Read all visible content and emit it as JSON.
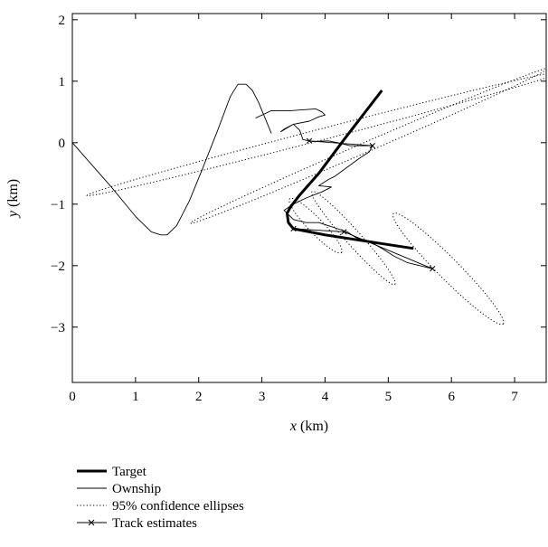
{
  "chart_data": {
    "type": "line",
    "title": "",
    "xlabel": {
      "var": "x",
      "unit": " (km)"
    },
    "ylabel": {
      "var": "y",
      "unit": " (km)"
    },
    "xlim": [
      0,
      7.5
    ],
    "ylim": [
      -3.9,
      2.1
    ],
    "xticks": [
      0,
      1,
      2,
      3,
      4,
      5,
      6,
      7
    ],
    "yticks": [
      2,
      1,
      0,
      -1,
      -2,
      -3
    ],
    "tick_labels_x": [
      "0",
      "1",
      "2",
      "3",
      "4",
      "5",
      "6",
      "7"
    ],
    "tick_labels_y": [
      "2",
      "1",
      "0",
      "−1",
      "−2",
      "−3"
    ],
    "grid": false,
    "legend_position": "below",
    "series": [
      {
        "name": "Target",
        "style": "thick",
        "points": [
          [
            4.9,
            0.85
          ],
          [
            4.3,
            0.05
          ],
          [
            3.9,
            -0.5
          ],
          [
            3.6,
            -0.85
          ],
          [
            3.45,
            -1.05
          ],
          [
            3.4,
            -1.15
          ],
          [
            3.42,
            -1.3
          ],
          [
            3.5,
            -1.4
          ],
          [
            4.0,
            -1.5
          ],
          [
            4.5,
            -1.58
          ],
          [
            5.4,
            -1.72
          ]
        ]
      },
      {
        "name": "Ownship",
        "style": "thin",
        "segments": [
          [
            [
              0.0,
              0.0
            ],
            [
              0.6,
              -0.7
            ],
            [
              1.0,
              -1.2
            ],
            [
              1.25,
              -1.45
            ],
            [
              1.4,
              -1.5
            ],
            [
              1.5,
              -1.5
            ],
            [
              1.65,
              -1.35
            ],
            [
              1.85,
              -0.95
            ],
            [
              2.05,
              -0.45
            ],
            [
              2.3,
              0.2
            ],
            [
              2.5,
              0.75
            ],
            [
              2.62,
              0.95
            ],
            [
              2.75,
              0.95
            ],
            [
              2.85,
              0.85
            ],
            [
              2.95,
              0.65
            ],
            [
              3.05,
              0.4
            ],
            [
              3.15,
              0.15
            ]
          ],
          [
            [
              2.9,
              0.4
            ],
            [
              3.15,
              0.52
            ],
            [
              3.45,
              0.52
            ],
            [
              3.85,
              0.55
            ],
            [
              3.95,
              0.5
            ],
            [
              4.0,
              0.45
            ],
            [
              3.9,
              0.42
            ],
            [
              3.75,
              0.35
            ],
            [
              3.5,
              0.3
            ],
            [
              3.35,
              0.22
            ],
            [
              3.3,
              0.18
            ],
            [
              3.5,
              0.3
            ],
            [
              3.6,
              0.2
            ],
            [
              3.65,
              0.05
            ],
            [
              3.8,
              0.02
            ],
            [
              4.05,
              0.03
            ],
            [
              4.2,
              0.0
            ],
            [
              4.4,
              -0.05
            ],
            [
              4.6,
              -0.05
            ],
            [
              4.75,
              -0.05
            ],
            [
              4.7,
              -0.15
            ],
            [
              4.55,
              -0.25
            ],
            [
              4.35,
              -0.4
            ],
            [
              4.15,
              -0.55
            ],
            [
              4.05,
              -0.6
            ],
            [
              3.9,
              -0.7
            ],
            [
              4.1,
              -0.72
            ],
            [
              3.95,
              -0.8
            ],
            [
              3.7,
              -0.9
            ],
            [
              3.5,
              -1.0
            ],
            [
              3.35,
              -1.1
            ],
            [
              3.5,
              -1.25
            ],
            [
              3.7,
              -1.3
            ],
            [
              3.9,
              -1.3
            ],
            [
              4.05,
              -1.35
            ],
            [
              4.2,
              -1.4
            ],
            [
              4.35,
              -1.45
            ],
            [
              4.5,
              -1.55
            ],
            [
              4.7,
              -1.6
            ],
            [
              4.9,
              -1.72
            ],
            [
              5.1,
              -1.85
            ],
            [
              5.3,
              -1.95
            ],
            [
              5.5,
              -2.0
            ],
            [
              5.7,
              -2.05
            ]
          ]
        ]
      },
      {
        "name": "95% confidence ellipses",
        "style": "dotted",
        "ellipses": [
          {
            "cx": 4.0,
            "cy": 0.15,
            "rx": 3.9,
            "ry": 0.09,
            "angle_deg": 15
          },
          {
            "cx": 4.7,
            "cy": -0.05,
            "rx": 3.1,
            "ry": 0.08,
            "angle_deg": 24
          },
          {
            "cx": 3.85,
            "cy": -1.35,
            "rx": 0.6,
            "ry": 0.12,
            "angle_deg": -47
          },
          {
            "cx": 4.45,
            "cy": -1.55,
            "rx": 1.0,
            "ry": 0.12,
            "angle_deg": -49
          },
          {
            "cx": 5.95,
            "cy": -2.05,
            "rx": 1.25,
            "ry": 0.17,
            "angle_deg": -46
          }
        ]
      },
      {
        "name": "Track estimates",
        "style": "thin-with-x-markers",
        "segments": [
          [
            [
              3.75,
              0.03
            ],
            [
              4.75,
              -0.05
            ]
          ],
          [
            [
              3.5,
              -1.4
            ],
            [
              4.3,
              -1.45
            ],
            [
              5.7,
              -2.05
            ]
          ]
        ],
        "markers": [
          [
            3.75,
            0.03
          ],
          [
            4.75,
            -0.05
          ],
          [
            3.5,
            -1.4
          ],
          [
            4.3,
            -1.45
          ],
          [
            5.7,
            -2.05
          ]
        ]
      }
    ]
  }
}
